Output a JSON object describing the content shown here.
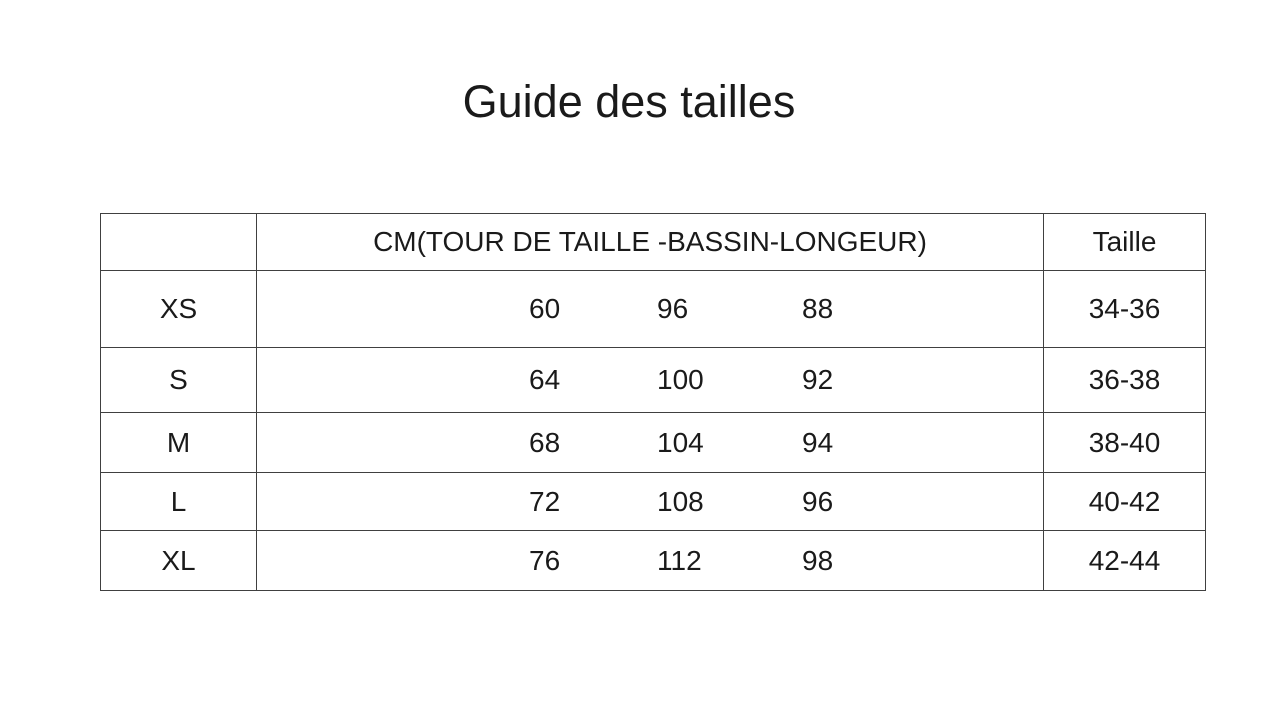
{
  "page": {
    "background_color": "#ffffff",
    "text_color": "#1a1a1a",
    "table_border_color": "#404040"
  },
  "title": "Guide des tailles",
  "table": {
    "header": {
      "size_label": "",
      "cm": "CM(TOUR DE TAILLE -BASSIN-LONGEUR)",
      "taille": "Taille"
    },
    "rows": [
      {
        "size": "XS",
        "cm": [
          "60",
          "96",
          "88"
        ],
        "taille": "34-36"
      },
      {
        "size": "S",
        "cm": [
          "64",
          "100",
          "92"
        ],
        "taille": "36-38"
      },
      {
        "size": "M",
        "cm": [
          "68",
          "104",
          "94"
        ],
        "taille": "38-40"
      },
      {
        "size": "L",
        "cm": [
          "72",
          "108",
          "96"
        ],
        "taille": "40-42"
      },
      {
        "size": "XL",
        "cm": [
          "76",
          "112",
          "98"
        ],
        "taille": "42-44"
      }
    ]
  }
}
